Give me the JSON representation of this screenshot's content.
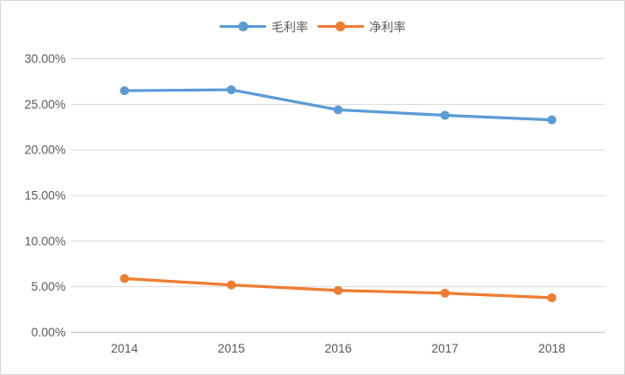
{
  "chart_data": {
    "type": "line",
    "title": "",
    "xlabel": "",
    "ylabel": "",
    "categories": [
      "2014",
      "2015",
      "2016",
      "2017",
      "2018"
    ],
    "series": [
      {
        "name": "毛利率",
        "color": "#5B9BD5",
        "values": [
          26.5,
          26.6,
          24.4,
          23.8,
          23.3
        ]
      },
      {
        "name": "净利率",
        "color": "#ED7D31",
        "values": [
          5.9,
          5.2,
          4.6,
          4.3,
          3.8
        ]
      }
    ],
    "ylim": [
      0,
      30
    ],
    "y_ticks": [
      {
        "value": 0,
        "label": "0.00%"
      },
      {
        "value": 5,
        "label": "5.00%"
      },
      {
        "value": 10,
        "label": "10.00%"
      },
      {
        "value": 15,
        "label": "15.00%"
      },
      {
        "value": 20,
        "label": "20.00%"
      },
      {
        "value": 25,
        "label": "25.00%"
      },
      {
        "value": 30,
        "label": "30.00%"
      }
    ],
    "grid": "horizontal",
    "legend_position": "top",
    "marker": "circle"
  },
  "colors": {
    "axis_text": "#595959",
    "gridline": "#d9d9d9",
    "axis_line": "#c6c6c6",
    "chart_border": "#d9d9d9",
    "background": "#ffffff"
  }
}
